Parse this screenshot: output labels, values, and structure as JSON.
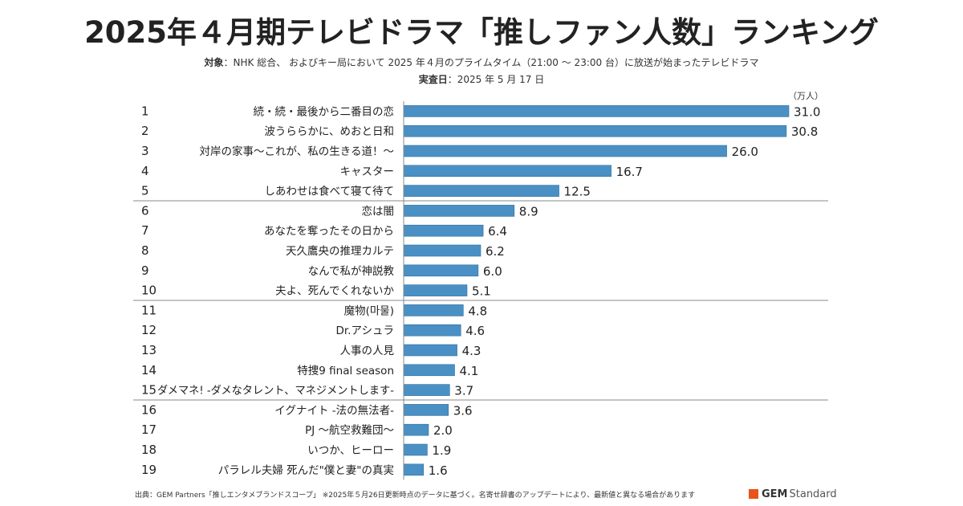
{
  "title": "2025年４月期テレビドラマ「推しファン人数」ランキング",
  "subtitle": {
    "target_label": "対象",
    "target_text": "：NHK 総合、 およびキー局において 2025 年４月のプライムタイム（21:00 ～ 23:00 台）に放送が始まったテレビドラマ",
    "date_label": "実査日",
    "date_text": "：2025 年 5 月 17 日"
  },
  "footer_note": "出典：GEM Partners「推しエンタメブランドスコープ」 ※2025年５月26日更新時点のデータに基づく。名寄せ辞書のアップデートにより、最新値と異なる場合があります",
  "logo": {
    "strong": "GEM",
    "light": "Standard",
    "mark_color": "#e8541c"
  },
  "chart_data": {
    "type": "bar",
    "orientation": "horizontal",
    "unit_label": "（万人）",
    "ranks": [
      "1",
      "2",
      "3",
      "4",
      "5",
      "6",
      "7",
      "8",
      "9",
      "10",
      "11",
      "12",
      "13",
      "14",
      "15",
      "16",
      "17",
      "18",
      "19"
    ],
    "categories": [
      "続・続・最後から二番目の恋",
      "波うららかに、めおと日和",
      "対岸の家事～これが、私の生きる道！～",
      "キャスター",
      "しあわせは食べて寝て待て",
      "恋は闇",
      "あなたを奪ったその日から",
      "天久鷹央の推理カルテ",
      "なんで私が神説教",
      "夫よ、死んでくれないか",
      "魔物(마물)",
      "Dr.アシュラ",
      "人事の人見",
      "特捜9 final season",
      "ダメマネ! -ダメなタレント、マネジメントします-",
      "イグナイト -法の無法者-",
      "PJ ～航空救難団～",
      "いつか、ヒーロー",
      "パラレル夫婦 死んだ\"僕と妻\"の真実"
    ],
    "values": [
      31.0,
      30.8,
      26.0,
      16.7,
      12.5,
      8.9,
      6.4,
      6.2,
      6.0,
      5.1,
      4.8,
      4.6,
      4.3,
      4.1,
      3.7,
      3.6,
      2.0,
      1.9,
      1.6
    ],
    "group_separators_after": [
      5,
      10,
      15
    ],
    "bar_color": "#4a90c4",
    "bar_edge_color": "#2f6f9f",
    "grid": false,
    "xlim": [
      0,
      31
    ]
  }
}
